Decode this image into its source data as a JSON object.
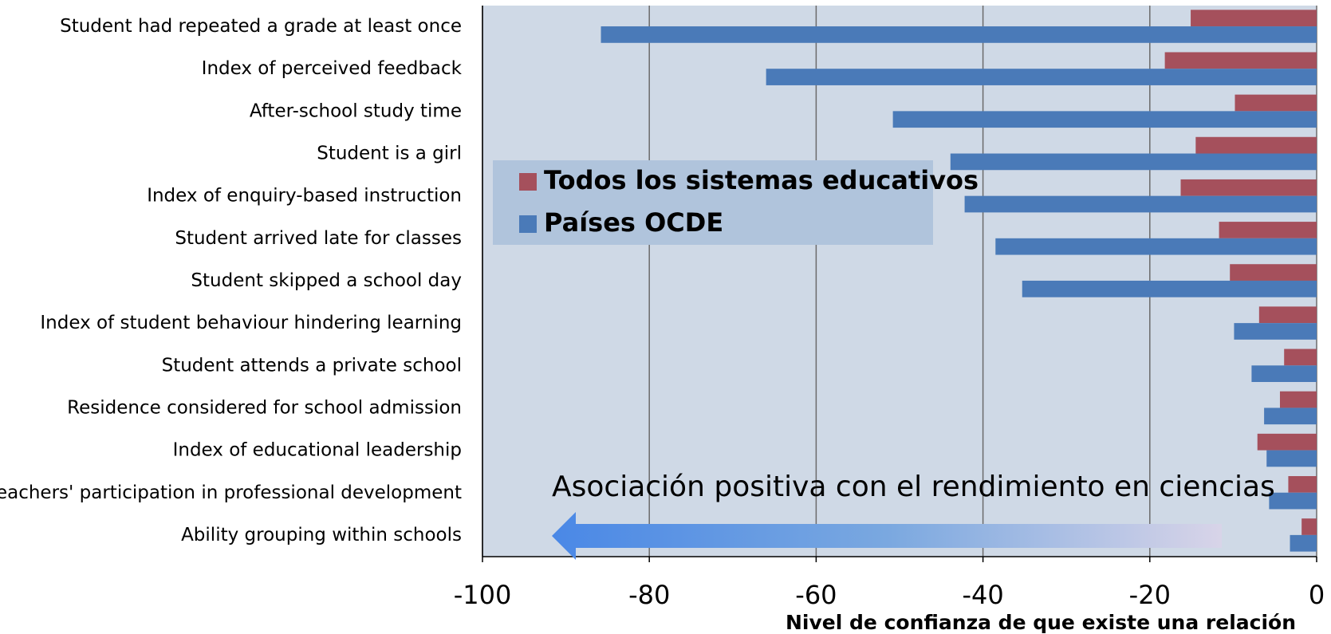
{
  "chart_data": {
    "type": "bar",
    "orientation": "horizontal",
    "categories": [
      "Student had repeated a grade at least once",
      "Index of perceived feedback",
      "After-school study time",
      "Student is a girl",
      "Index of enquiry-based instruction",
      "Student arrived late for classes",
      "Student skipped a school day",
      "Index of student behaviour hindering learning",
      "Student attends a private school",
      "Residence considered for school admission",
      "Index of educational leadership",
      "Teachers' participation in professional development",
      "Ability grouping within schools"
    ],
    "series": [
      {
        "name": "Todos los sistemas educativos",
        "color": "#a5505c",
        "values": [
          -15.1,
          -18.2,
          -9.8,
          -14.5,
          -16.3,
          -11.7,
          -10.4,
          -6.9,
          -3.9,
          -4.4,
          -7.1,
          -3.4,
          -1.8
        ]
      },
      {
        "name": "Países OCDE",
        "color": "#4a7ab8",
        "values": [
          -85.8,
          -66,
          -50.8,
          -43.9,
          -42.2,
          -38.5,
          -35.3,
          -9.9,
          -7.8,
          -6.3,
          -6,
          -5.7,
          -3.2
        ]
      }
    ],
    "xlim": [
      -100,
      0
    ],
    "xticks": [
      -100,
      -80,
      -60,
      -40,
      -20,
      0
    ],
    "xlabel": "Nivel de confianza de que existe una relación",
    "annotation": "Asociación positiva con el rendimiento en ciencias",
    "grid": true,
    "legend": "upper left"
  }
}
